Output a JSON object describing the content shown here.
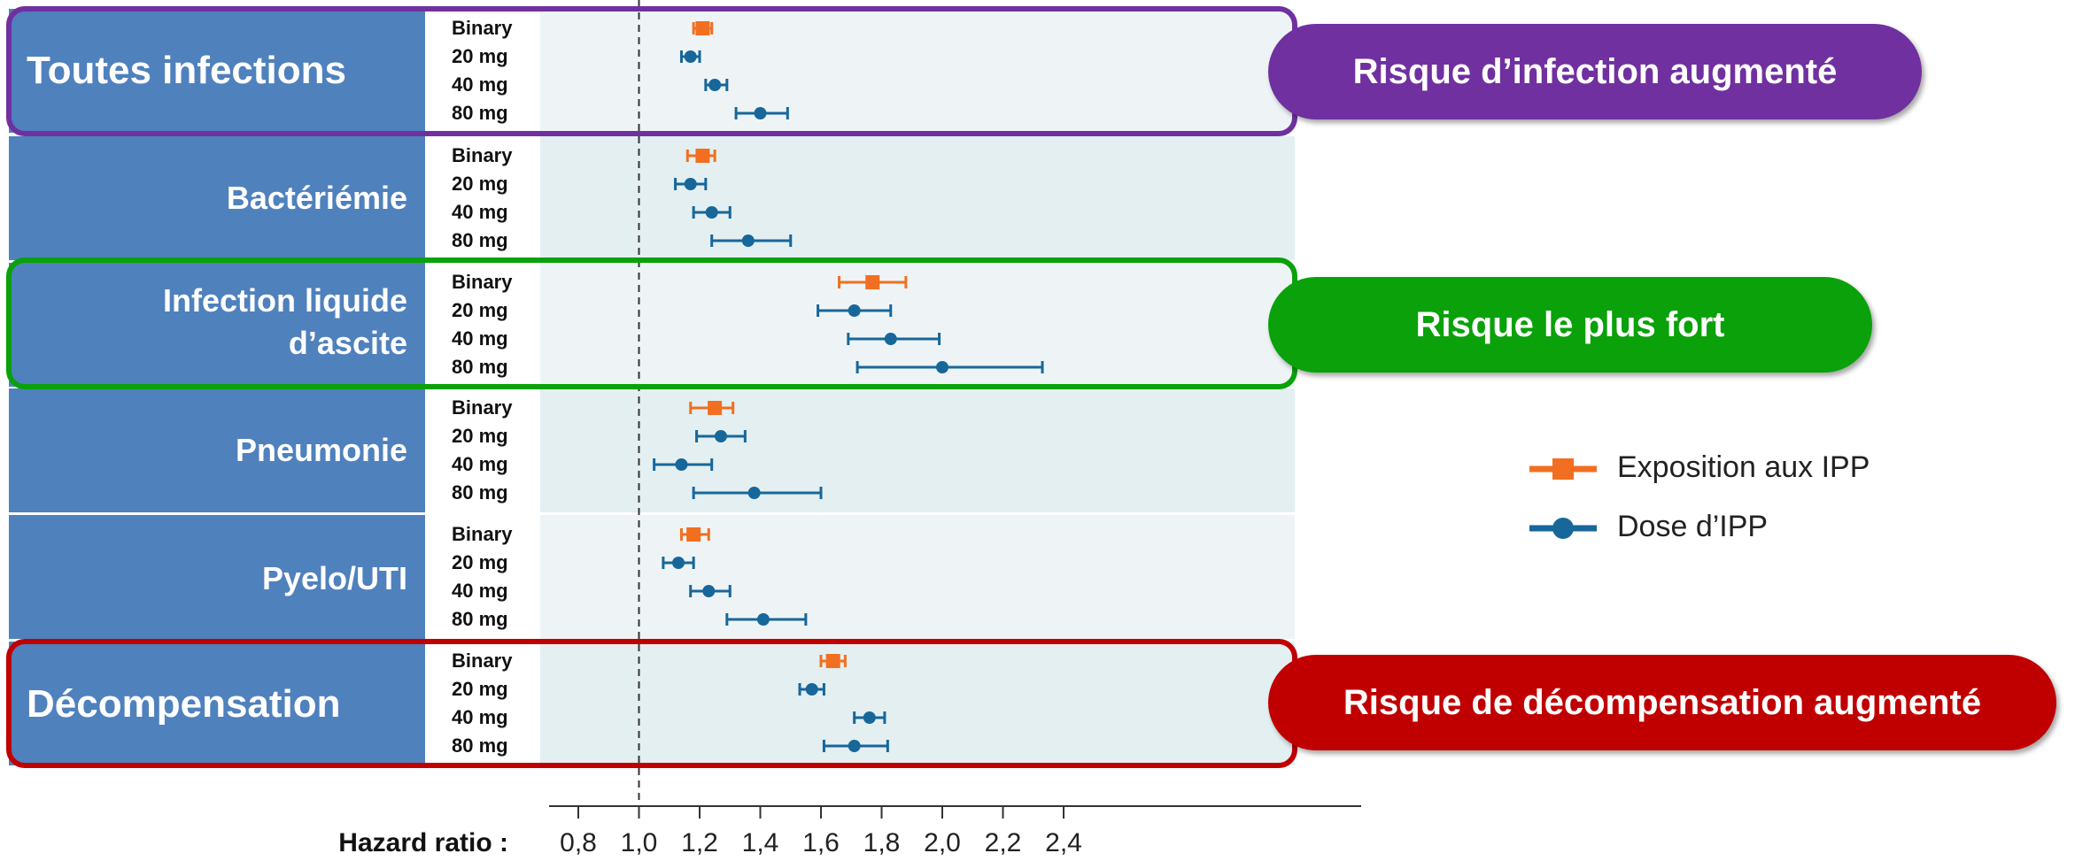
{
  "colors": {
    "label_panel": "#4f81bd",
    "plot_bg_a": "#eef4f6",
    "plot_bg_b": "#e3eff1",
    "exposure": "#f26f21",
    "dose": "#17679a",
    "purple": "#7030a0",
    "green": "#0aa10a",
    "red": "#c00000"
  },
  "callouts": {
    "infection": "Risque d’infection augmenté",
    "strongest": "Risque le plus fort",
    "decompensation": "Risque de décompensation augmenté"
  },
  "legend": {
    "exposure": "Exposition aux IPP",
    "dose": "Dose d’IPP"
  },
  "chart_data": {
    "type": "forest",
    "xlabel": "Hazard ratio :",
    "xlim": [
      0.7,
      2.5
    ],
    "xticks": [
      "0,8",
      "1,0",
      "1,2",
      "1,4",
      "1,6",
      "1,8",
      "2,0",
      "2,2",
      "2,4"
    ],
    "reference_line": 1.0,
    "row_labels": [
      "Binary",
      "20 mg",
      "40 mg",
      "80 mg"
    ],
    "groups": [
      {
        "label": "Toutes infections",
        "rows": [
          [
            1.21,
            1.18,
            1.24
          ],
          [
            1.17,
            1.14,
            1.2
          ],
          [
            1.25,
            1.22,
            1.29
          ],
          [
            1.4,
            1.32,
            1.49
          ]
        ]
      },
      {
        "label": "Bactériémie",
        "rows": [
          [
            1.21,
            1.16,
            1.25
          ],
          [
            1.17,
            1.12,
            1.22
          ],
          [
            1.24,
            1.18,
            1.3
          ],
          [
            1.36,
            1.24,
            1.5
          ]
        ]
      },
      {
        "label": "Infection liquide d’ascite",
        "rows": [
          [
            1.77,
            1.66,
            1.88
          ],
          [
            1.71,
            1.59,
            1.83
          ],
          [
            1.83,
            1.69,
            1.99
          ],
          [
            2.0,
            1.72,
            2.33
          ]
        ]
      },
      {
        "label": "Pneumonie",
        "rows": [
          [
            1.25,
            1.17,
            1.31
          ],
          [
            1.27,
            1.19,
            1.35
          ],
          [
            1.14,
            1.05,
            1.24
          ],
          [
            1.38,
            1.18,
            1.6
          ]
        ]
      },
      {
        "label": "Pyelo/UTI",
        "rows": [
          [
            1.18,
            1.14,
            1.23
          ],
          [
            1.13,
            1.08,
            1.18
          ],
          [
            1.23,
            1.17,
            1.3
          ],
          [
            1.41,
            1.29,
            1.55
          ]
        ]
      },
      {
        "label": "Décompensation",
        "rows": [
          [
            1.64,
            1.6,
            1.68
          ],
          [
            1.57,
            1.53,
            1.61
          ],
          [
            1.76,
            1.71,
            1.81
          ],
          [
            1.71,
            1.61,
            1.82
          ]
        ]
      }
    ]
  }
}
